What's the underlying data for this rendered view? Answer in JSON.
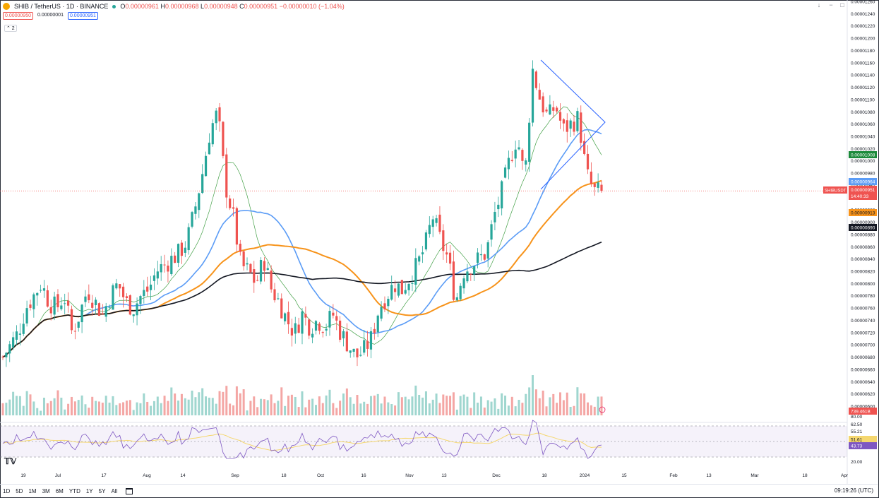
{
  "header": {
    "symbol_title": "SHIB / TetherUS · 1D · BINANCE",
    "ohlc": {
      "o_label": "O",
      "o": "0.00000961",
      "h_label": "H",
      "h": "0.00000968",
      "l_label": "L",
      "l": "0.00000948",
      "c_label": "C",
      "c": "0.00000951",
      "change": "−0.00000010 (−1.04%)"
    },
    "bid": "0.00000950",
    "spread": "0.00000001",
    "ask": "0.00000951",
    "collapse_label": "⌃ 2"
  },
  "toolbar_icons": [
    "arrow-down-icon",
    "minus-icon",
    "maximize-icon"
  ],
  "colors": {
    "up": "#26a69a",
    "down": "#ef5350",
    "ma_blue": "#5b9cf6",
    "ma_orange": "#f7931a",
    "ma_black": "#131722",
    "ma_green": "#43a047",
    "rsi": "#7e57c2",
    "rsi_ma": "#f5d76e",
    "trendline": "#2962ff",
    "volume_up": "#9fd6cf",
    "volume_down": "#f4a6a4"
  },
  "price_axis": {
    "labels": [
      "0.00001260",
      "0.00001240",
      "0.00001220",
      "0.00001200",
      "0.00001180",
      "0.00001160",
      "0.00001140",
      "0.00001120",
      "0.00001100",
      "0.00001080",
      "0.00001060",
      "0.00001040",
      "0.00001020",
      "0.00001000",
      "0.00000980",
      "0.00000960",
      "0.00000940",
      "0.00000920",
      "0.00000900",
      "0.00000880",
      "0.00000860",
      "0.00000840",
      "0.00000820",
      "0.00000800",
      "0.00000780",
      "0.00000760",
      "0.00000740",
      "0.00000720",
      "0.00000700",
      "0.00000680",
      "0.00000660",
      "0.00000640",
      "0.00000620",
      "0.00000600"
    ],
    "tag_green": "0.00001008",
    "tag_blue": "0.00000964",
    "tag_symbol": "SHIBUSDT",
    "tag_last": "0.00000951",
    "tag_countdown": "14:40:33",
    "tag_orange": "0.00000913",
    "tag_black": "0.00000890",
    "volume_tag": "739.461B"
  },
  "rsi_axis": {
    "labels": [
      "80.00",
      "62.50",
      "55.21",
      "51.61",
      "43.73",
      "20.00"
    ]
  },
  "time_axis": [
    "19",
    "Jul",
    "17",
    "Aug",
    "14",
    "Sep",
    "18",
    "Oct",
    "16",
    "Nov",
    "13",
    "Dec",
    "18",
    "2024",
    "15",
    "Feb",
    "13",
    "Mar",
    "18",
    "Apr"
  ],
  "ranges": [
    "1D",
    "5D",
    "1M",
    "3M",
    "6M",
    "YTD",
    "1Y",
    "5Y",
    "All"
  ],
  "clock": "09:19:26 (UTC)",
  "chart_data": {
    "type": "candlestick",
    "title": "SHIB / TetherUS · 1D · BINANCE",
    "ylim": [
      6e-06,
      1.26e-05
    ],
    "last_price": 9.51e-06,
    "series": [
      {
        "name": "close",
        "values": [
          6.8e-06,
          7e-06,
          7.2e-06,
          7.6e-06,
          7.8e-06,
          8e-06,
          7.7e-06,
          7.6e-06,
          7.8e-06,
          7.2e-06,
          7.5e-06,
          7.9e-06,
          7.7e-06,
          7.5e-06,
          7.8e-06,
          8e-06,
          7.7e-06,
          7.6e-06,
          7.8e-06,
          7.9e-06,
          8.2e-06,
          8.3e-06,
          8.4e-06,
          8.5e-06,
          8.7e-06,
          9.2e-06,
          9.8e-06,
          1.05e-05,
          1.08e-05,
          9.6e-06,
          9.1e-06,
          8.3e-06,
          8.2e-06,
          8e-06,
          8.4e-06,
          7.9e-06,
          7.7e-06,
          7.4e-06,
          7.2e-06,
          7.5e-06,
          7.3e-06,
          7.4e-06,
          7.3e-06,
          7.5e-06,
          7.2e-06,
          7e-06,
          6.8e-06,
          6.9e-06,
          7.1e-06,
          7.6e-06,
          7.8e-06,
          8e-06,
          7.9e-06,
          8.1e-06,
          8.3e-06,
          8.6e-06,
          9.1e-06,
          8.7e-06,
          8.4e-06,
          7.7e-06,
          8.2e-06,
          8.3e-06,
          8.4e-06,
          8.5e-06,
          9.1e-06,
          9.5e-06,
          1e-05,
          1.04e-05,
          9.7e-06,
          1.15e-05,
          1.1e-05,
          1.07e-05,
          1.09e-05,
          1.05e-05,
          1.06e-05,
          1.07e-05,
          9.8e-06,
          9.5e-06,
          9.5e-06
        ]
      }
    ]
  }
}
